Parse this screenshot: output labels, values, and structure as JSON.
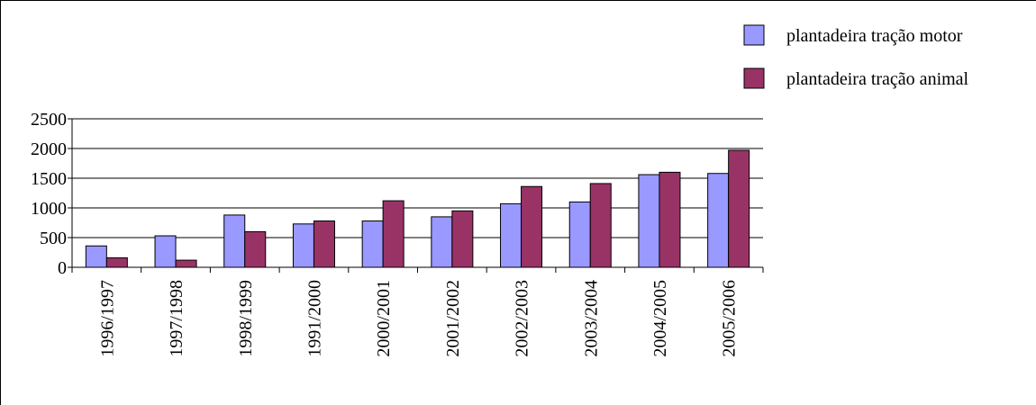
{
  "chart_data": {
    "type": "bar",
    "categories": [
      "1996/1997",
      "1997/1998",
      "1998/1999",
      "1991/2000",
      "2000/2001",
      "2001/2002",
      "2002/2003",
      "2003/2004",
      "2004/2005",
      "2005/2006"
    ],
    "series": [
      {
        "name": "plantadeira tração motor",
        "color": "#9999ff",
        "values": [
          360,
          530,
          880,
          730,
          780,
          850,
          1070,
          1100,
          1560,
          1580
        ]
      },
      {
        "name": "plantadeira tração animal",
        "color": "#993366",
        "values": [
          160,
          120,
          600,
          780,
          1120,
          950,
          1360,
          1410,
          1600,
          1970
        ]
      }
    ],
    "ylim": [
      0,
      2500
    ],
    "yticks": [
      0,
      500,
      1000,
      1500,
      2000,
      2500
    ],
    "grid": true,
    "legend": "top-right"
  }
}
